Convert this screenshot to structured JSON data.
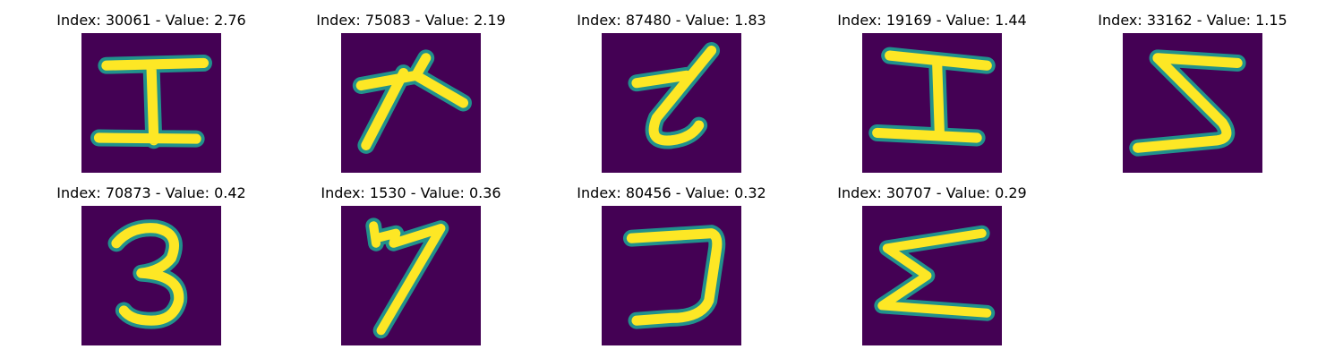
{
  "colors": {
    "background": "#440154",
    "stroke_mid": "#21918c",
    "stroke_core": "#fde725",
    "stroke_halo": "#3b528b"
  },
  "panels": [
    {
      "title": "Index: 30061 - Value: 2.76",
      "glyph": "I-like letterform"
    },
    {
      "title": "Index: 75083 - Value: 2.19",
      "glyph": "arrow-like letterform"
    },
    {
      "title": "Index: 87480 - Value: 1.83",
      "glyph": "Z-like letterform"
    },
    {
      "title": "Index: 19169 - Value: 1.44",
      "glyph": "I-like letterform"
    },
    {
      "title": "Index: 33162 - Value: 1.15",
      "glyph": "Σ-like letterform"
    },
    {
      "title": "Index: 70873 - Value: 0.42",
      "glyph": "3"
    },
    {
      "title": "Index: 1530 - Value: 0.36",
      "glyph": "7"
    },
    {
      "title": "Index: 80456 - Value: 0.32",
      "glyph": "reversed-J-like letterform"
    },
    {
      "title": "Index: 30707 - Value: 0.29",
      "glyph": "Σ"
    }
  ]
}
